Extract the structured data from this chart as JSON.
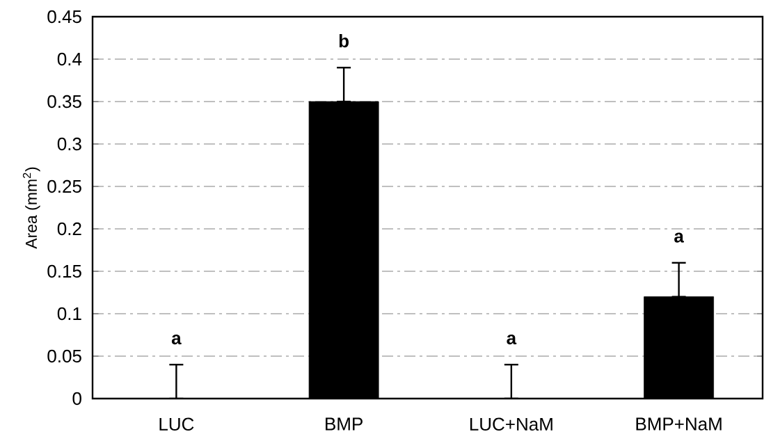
{
  "chart_data": {
    "type": "bar",
    "ylabel": "Area (mm$^{2}$)",
    "categories": [
      "LUC",
      "BMP",
      "LUC+NaM",
      "BMP+NaM"
    ],
    "values": [
      0,
      0.35,
      0,
      0.12
    ],
    "errors": [
      [
        0,
        0.04
      ],
      [
        0.35,
        0.39
      ],
      [
        0,
        0.04
      ],
      [
        0.12,
        0.16
      ]
    ],
    "color": "#000000",
    "ylim": [
      0,
      0.45
    ],
    "yticks": [
      0,
      0.05,
      0.1,
      0.15,
      0.2,
      0.25,
      0.3,
      0.35,
      0.4,
      0.45
    ],
    "grid": "y",
    "annotations": [
      "a",
      "b",
      "a",
      "a"
    ]
  }
}
